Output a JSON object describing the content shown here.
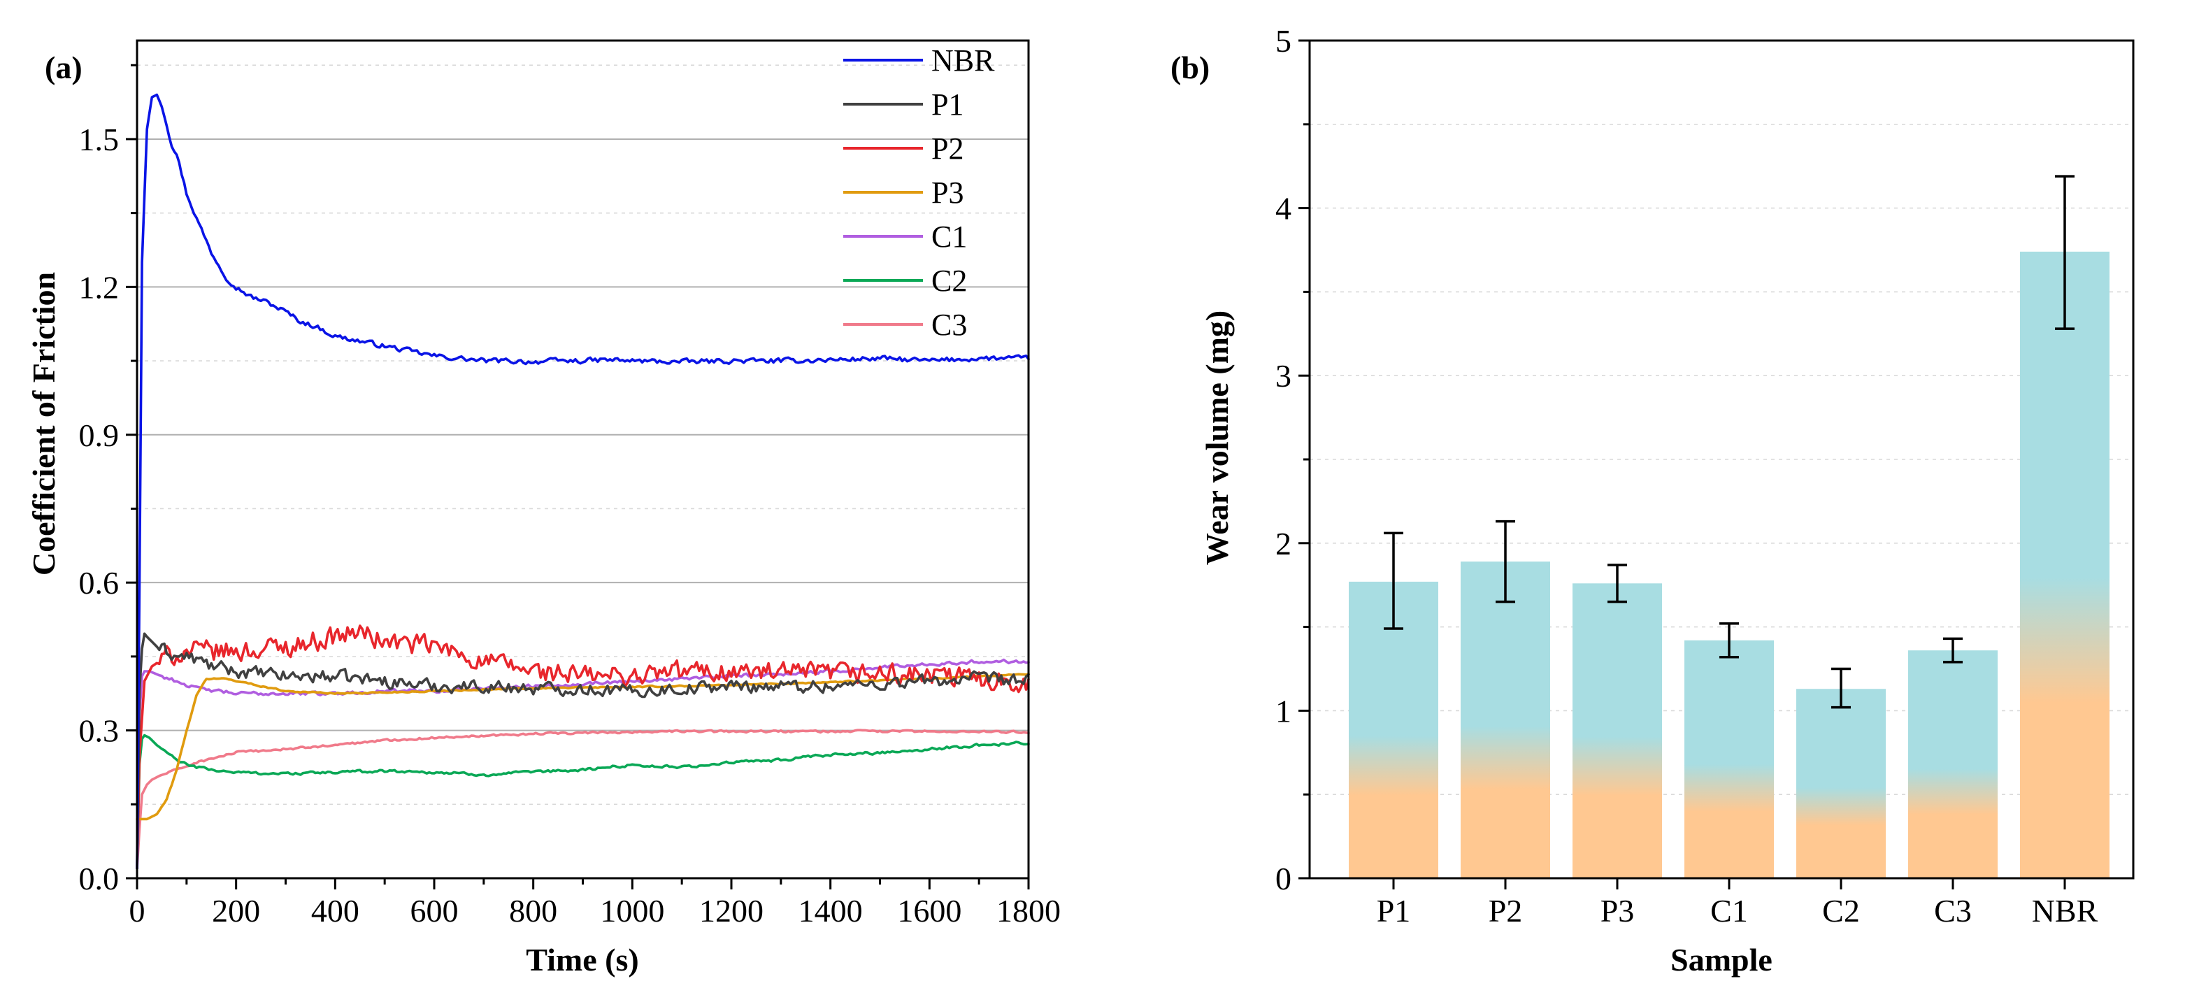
{
  "chart_data": [
    {
      "type": "line",
      "panel_label": "(a)",
      "xlabel": "Time (s)",
      "ylabel": "Coefficient of Friction",
      "xlim": [
        0,
        1800
      ],
      "ylim": [
        0,
        1.7
      ],
      "x_ticks": [
        0,
        200,
        400,
        600,
        800,
        1000,
        1200,
        1400,
        1600,
        1800
      ],
      "x_tick_labels": [
        "0",
        "200",
        "400",
        "600",
        "800",
        "1000",
        "1200",
        "1400",
        "1600",
        "1800"
      ],
      "y_ticks": [
        0.0,
        0.3,
        0.6,
        0.9,
        1.2,
        1.5
      ],
      "y_tick_labels": [
        "0.0",
        "0.3",
        "0.6",
        "0.9",
        "1.2",
        "1.5"
      ],
      "grid": "horizontal",
      "legend_position": "top-right",
      "series": [
        {
          "name": "NBR",
          "color": "#0a14e6",
          "x": [
            0,
            5,
            10,
            20,
            30,
            40,
            50,
            60,
            70,
            80,
            100,
            120,
            150,
            180,
            200,
            230,
            260,
            300,
            330,
            360,
            400,
            450,
            500,
            550,
            600,
            650,
            700,
            750,
            800,
            850,
            900,
            950,
            1000,
            1100,
            1200,
            1300,
            1400,
            1500,
            1600,
            1700,
            1800
          ],
          "y": [
            0.02,
            0.6,
            1.25,
            1.52,
            1.585,
            1.59,
            1.57,
            1.53,
            1.49,
            1.47,
            1.39,
            1.34,
            1.27,
            1.22,
            1.2,
            1.18,
            1.17,
            1.15,
            1.13,
            1.12,
            1.1,
            1.09,
            1.08,
            1.07,
            1.06,
            1.055,
            1.05,
            1.05,
            1.048,
            1.05,
            1.05,
            1.052,
            1.05,
            1.048,
            1.05,
            1.05,
            1.052,
            1.055,
            1.05,
            1.055,
            1.055
          ],
          "noise": 0.007
        },
        {
          "name": "P1",
          "color": "#404040",
          "x": [
            0,
            5,
            12,
            20,
            40,
            60,
            80,
            100,
            130,
            150,
            200,
            300,
            400,
            500,
            600,
            700,
            800,
            900,
            1000,
            1100,
            1200,
            1300,
            1400,
            1500,
            1600,
            1700,
            1800
          ],
          "y": [
            0.02,
            0.38,
            0.5,
            0.49,
            0.47,
            0.46,
            0.45,
            0.45,
            0.44,
            0.43,
            0.42,
            0.41,
            0.41,
            0.4,
            0.39,
            0.39,
            0.385,
            0.385,
            0.38,
            0.385,
            0.39,
            0.39,
            0.39,
            0.395,
            0.4,
            0.405,
            0.4
          ],
          "noise": 0.018
        },
        {
          "name": "P2",
          "color": "#e8262c",
          "x": [
            0,
            5,
            15,
            30,
            60,
            100,
            150,
            200,
            300,
            400,
            450,
            500,
            600,
            700,
            800,
            900,
            1000,
            1100,
            1200,
            1300,
            1400,
            1500,
            1600,
            1700,
            1800
          ],
          "y": [
            0.02,
            0.25,
            0.4,
            0.43,
            0.45,
            0.46,
            0.46,
            0.46,
            0.47,
            0.49,
            0.5,
            0.48,
            0.47,
            0.44,
            0.42,
            0.41,
            0.41,
            0.42,
            0.42,
            0.415,
            0.415,
            0.415,
            0.41,
            0.405,
            0.4
          ],
          "noise": 0.03
        },
        {
          "name": "P3",
          "color": "#e09b0f",
          "x": [
            0,
            5,
            20,
            40,
            60,
            80,
            100,
            120,
            140,
            180,
            250,
            300,
            400,
            500,
            600,
            700,
            800,
            900,
            1000,
            1100,
            1200,
            1300,
            1400,
            1500,
            1600,
            1700,
            1800
          ],
          "y": [
            0.12,
            0.12,
            0.12,
            0.13,
            0.16,
            0.22,
            0.3,
            0.37,
            0.405,
            0.405,
            0.39,
            0.38,
            0.375,
            0.377,
            0.38,
            0.383,
            0.385,
            0.387,
            0.388,
            0.39,
            0.392,
            0.395,
            0.398,
            0.402,
            0.405,
            0.41,
            0.415
          ],
          "noise": 0.002
        },
        {
          "name": "C1",
          "color": "#b05ee0",
          "x": [
            0,
            5,
            10,
            15,
            25,
            50,
            80,
            120,
            200,
            300,
            400,
            500,
            600,
            700,
            800,
            900,
            1000,
            1100,
            1200,
            1300,
            1400,
            1500,
            1600,
            1700,
            1800
          ],
          "y": [
            0.02,
            0.33,
            0.41,
            0.42,
            0.42,
            0.41,
            0.4,
            0.385,
            0.375,
            0.375,
            0.375,
            0.38,
            0.38,
            0.385,
            0.39,
            0.395,
            0.4,
            0.405,
            0.41,
            0.415,
            0.42,
            0.428,
            0.435,
            0.44,
            0.44
          ],
          "noise": 0.005
        },
        {
          "name": "C2",
          "color": "#0aa856",
          "x": [
            0,
            3,
            8,
            15,
            25,
            40,
            60,
            80,
            100,
            150,
            200,
            300,
            400,
            500,
            600,
            700,
            800,
            900,
            1000,
            1100,
            1200,
            1300,
            1400,
            1500,
            1600,
            1700,
            1800
          ],
          "y": [
            0.02,
            0.2,
            0.28,
            0.29,
            0.285,
            0.27,
            0.255,
            0.24,
            0.23,
            0.22,
            0.215,
            0.212,
            0.215,
            0.218,
            0.215,
            0.21,
            0.215,
            0.22,
            0.23,
            0.225,
            0.235,
            0.24,
            0.25,
            0.255,
            0.262,
            0.27,
            0.275
          ],
          "noise": 0.004
        },
        {
          "name": "C3",
          "color": "#f07a8a",
          "x": [
            0,
            5,
            10,
            20,
            30,
            50,
            80,
            120,
            160,
            200,
            300,
            400,
            500,
            600,
            700,
            800,
            900,
            1000,
            1100,
            1200,
            1300,
            1400,
            1500,
            1600,
            1700,
            1800
          ],
          "y": [
            0.02,
            0.1,
            0.17,
            0.19,
            0.2,
            0.21,
            0.22,
            0.235,
            0.245,
            0.255,
            0.262,
            0.27,
            0.28,
            0.285,
            0.29,
            0.293,
            0.295,
            0.297,
            0.298,
            0.298,
            0.298,
            0.298,
            0.298,
            0.298,
            0.297,
            0.297
          ],
          "noise": 0.003
        }
      ]
    },
    {
      "type": "bar",
      "panel_label": "(b)",
      "xlabel": "Sample",
      "ylabel": "Wear volume (mg)",
      "categories": [
        "P1",
        "P2",
        "P3",
        "C1",
        "C2",
        "C3",
        "NBR"
      ],
      "values": [
        1.77,
        1.89,
        1.76,
        1.42,
        1.13,
        1.36,
        3.74
      ],
      "error_low": [
        1.49,
        1.65,
        1.65,
        1.32,
        1.02,
        1.29,
        3.28
      ],
      "error_high": [
        2.06,
        2.13,
        1.87,
        1.52,
        1.25,
        1.43,
        4.19
      ],
      "ylim": [
        0,
        5
      ],
      "y_ticks": [
        0,
        1,
        2,
        3,
        4,
        5
      ],
      "y_tick_labels": [
        "0",
        "1",
        "2",
        "3",
        "4",
        "5"
      ],
      "grid": "horizontal-dashed",
      "bar_gradient_top": "#a8dde2",
      "bar_gradient_bottom": "#ffc891"
    }
  ]
}
